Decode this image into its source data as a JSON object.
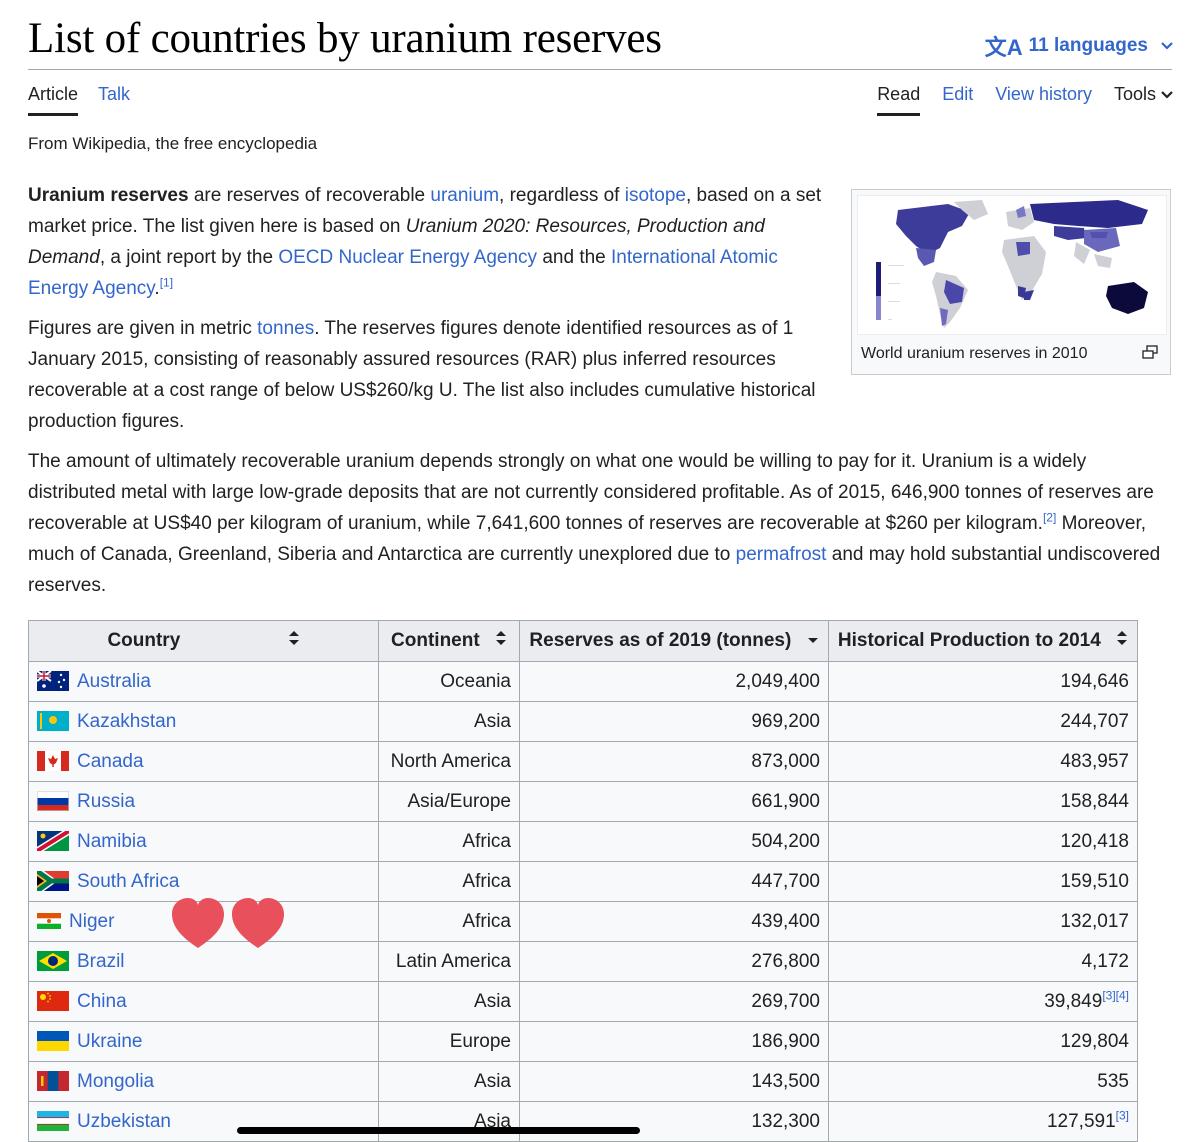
{
  "page": {
    "title": "List of countries by uranium reserves",
    "languages_label": "11 languages",
    "tabs_left": [
      "Article",
      "Talk"
    ],
    "tabs_right": {
      "read": "Read",
      "edit": "Edit",
      "history": "View history",
      "tools": "Tools"
    },
    "tagline": "From Wikipedia, the free encyclopedia"
  },
  "intro": {
    "p1": {
      "bold": "Uranium reserves",
      "t1": " are reserves of recoverable ",
      "l_uranium": "uranium",
      "t2": ", regardless of ",
      "l_isotope": "isotope",
      "t3": ", based on a set market price. The list given here is based on ",
      "italic": "Uranium 2020: Resources, Production and Demand",
      "t4": ", a joint report by the ",
      "l_oecd": "OECD Nuclear Energy Agency",
      "t5": " and the ",
      "l_iaea": "International Atomic Energy Agency",
      "t6": ".",
      "ref": "[1]"
    },
    "p2": {
      "t1": "Figures are given in metric ",
      "l_tonnes": "tonnes",
      "t2": ". The reserves figures denote identified resources as of 1 January 2015, consisting of reasonably assured resources (RAR) plus inferred resources recoverable at a cost range of below US$260/kg U. The list also includes cumulative historical production figures."
    },
    "p3": {
      "t1": "The amount of ultimately recoverable uranium depends strongly on what one would be willing to pay for it. Uranium is a widely distributed metal with large low-grade deposits that are not currently considered profitable. As of 2015, 646,900 tonnes of reserves are recoverable at US$40 per kilogram of uranium, while 7,641,600 tonnes of reserves are recoverable at $260 per kilogram.",
      "ref": "[2]",
      "t2": " Moreover, much of Canada, Greenland, Siberia and Antarctica are currently unexplored due to ",
      "l_permafrost": "permafrost",
      "t3": " and may hold substantial undiscovered reserves."
    }
  },
  "thumbnail": {
    "caption": "World uranium reserves in 2010"
  },
  "table": {
    "headers": {
      "country": "Country",
      "continent": "Continent",
      "reserves": "Reserves as of 2019 (tonnes)",
      "production": "Historical Production to 2014"
    },
    "rows": [
      {
        "country": "Australia",
        "continent": "Oceania",
        "reserves": "2,049,400",
        "production": "194,646",
        "refs": ""
      },
      {
        "country": "Kazakhstan",
        "continent": "Asia",
        "reserves": "969,200",
        "production": "244,707",
        "refs": ""
      },
      {
        "country": "Canada",
        "continent": "North America",
        "reserves": "873,000",
        "production": "483,957",
        "refs": ""
      },
      {
        "country": "Russia",
        "continent": "Asia/Europe",
        "reserves": "661,900",
        "production": "158,844",
        "refs": ""
      },
      {
        "country": "Namibia",
        "continent": "Africa",
        "reserves": "504,200",
        "production": "120,418",
        "refs": ""
      },
      {
        "country": "South Africa",
        "continent": "Africa",
        "reserves": "447,700",
        "production": "159,510",
        "refs": ""
      },
      {
        "country": "Niger",
        "continent": "Africa",
        "reserves": "439,400",
        "production": "132,017",
        "refs": ""
      },
      {
        "country": "Brazil",
        "continent": "Latin America",
        "reserves": "276,800",
        "production": "4,172",
        "refs": ""
      },
      {
        "country": "China",
        "continent": "Asia",
        "reserves": "269,700",
        "production": "39,849",
        "refs": "[3][4]"
      },
      {
        "country": "Ukraine",
        "continent": "Europe",
        "reserves": "186,900",
        "production": "129,804",
        "refs": ""
      },
      {
        "country": "Mongolia",
        "continent": "Asia",
        "reserves": "143,500",
        "production": "535",
        "refs": ""
      },
      {
        "country": "Uzbekistan",
        "continent": "Asia",
        "reserves": "132,300",
        "production": "127,591",
        "refs": "[3]"
      }
    ]
  },
  "colors": {
    "link": "#3366cc",
    "header_bg": "#eaecf0",
    "table_bg": "#f8f9fa",
    "heart": "#e8505b"
  }
}
